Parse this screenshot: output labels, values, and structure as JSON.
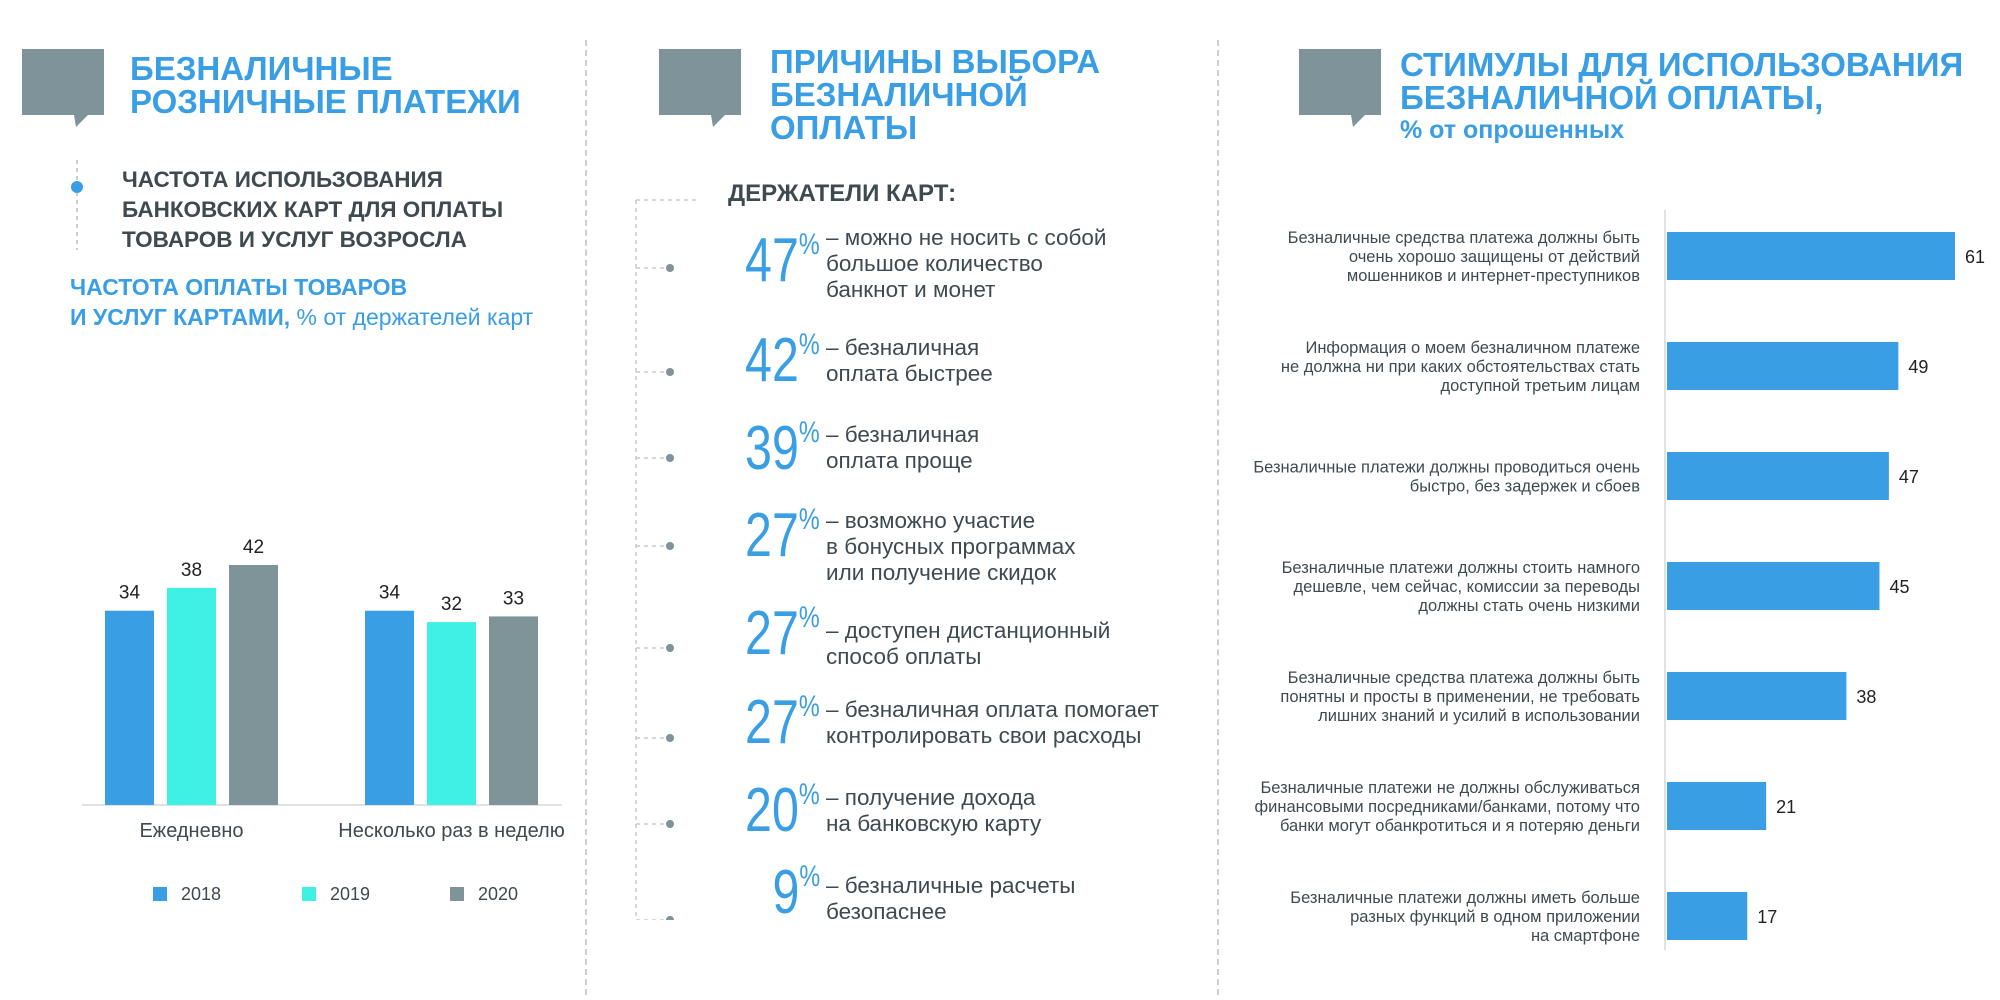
{
  "left": {
    "heading": [
      "БЕЗНАЛИЧНЫЕ",
      "РОЗНИЧНЫЕ ПЛАТЕЖИ"
    ],
    "bullet": [
      "ЧАСТОТА ИСПОЛЬЗОВАНИЯ",
      "БАНКОВСКИХ КАРТ ДЛЯ ОПЛАТЫ",
      "ТОВАРОВ И УСЛУГ ВОЗРОСЛА"
    ],
    "chart_title_line1": "ЧАСТОТА ОПЛАТЫ ТОВАРОВ",
    "chart_title_line2_bold": "И УСЛУГ КАРТАМИ,",
    "chart_title_line2_rest": " % от держателей карт"
  },
  "middle": {
    "heading": [
      "ПРИЧИНЫ ВЫБОРА",
      "БЕЗНАЛИЧНОЙ",
      "ОПЛАТЫ"
    ],
    "subtitle": "ДЕРЖАТЕЛИ КАРТ:",
    "percent_sign": "%",
    "reasons": [
      {
        "value": "47",
        "text": [
          "– можно не носить с собой",
          "большое количество",
          "банкнот и монет"
        ]
      },
      {
        "value": "42",
        "text": [
          "– безналичная",
          "оплата быстрее"
        ]
      },
      {
        "value": "39",
        "text": [
          "– безналичная",
          "оплата проще"
        ]
      },
      {
        "value": "27",
        "text": [
          "– возможно участие",
          "в бонусных программах",
          "или получение скидок"
        ]
      },
      {
        "value": "27",
        "text": [
          "– доступен дистанционный",
          "способ оплаты"
        ]
      },
      {
        "value": "27",
        "text": [
          "– безналичная оплата помогает",
          "контролировать свои расходы"
        ]
      },
      {
        "value": "20",
        "text": [
          "– получение дохода",
          "на банковскую карту"
        ]
      },
      {
        "value": "9",
        "text": [
          "– безналичные расчеты",
          "безопаснее"
        ]
      }
    ]
  },
  "right": {
    "heading": [
      "СТИМУЛЫ ДЛЯ ИСПОЛЬЗОВАНИЯ",
      "БЕЗНАЛИЧНОЙ ОПЛАТЫ,"
    ],
    "heading_sub": "% от опрошенных"
  },
  "colors": {
    "blue": "#3a9ee4",
    "cyan": "#3ff0e4",
    "gray": "#7f9498",
    "bubble": "#7e939a",
    "dark_text": "#3e4a50"
  },
  "chart_data": [
    {
      "type": "bar",
      "title": "ЧАСТОТА ОПЛАТЫ ТОВАРОВ И УСЛУГ КАРТАМИ, % от держателей карт",
      "categories": [
        "Ежедневно",
        "Несколько раз в неделю"
      ],
      "series": [
        {
          "name": "2018",
          "values": [
            34,
            34
          ]
        },
        {
          "name": "2019",
          "values": [
            38,
            32
          ]
        },
        {
          "name": "2020",
          "values": [
            42,
            33
          ]
        }
      ],
      "ylim": [
        0,
        45
      ],
      "legend": "bottom",
      "grid": false
    },
    {
      "type": "bar",
      "orientation": "horizontal",
      "title": "СТИМУЛЫ ДЛЯ ИСПОЛЬЗОВАНИЯ БЕЗНАЛИЧНОЙ ОПЛАТЫ, % от опрошенных",
      "categories": [
        [
          "Безналичные средства платежа должны быть",
          "очень хорошо защищены от действий",
          "мошенников и интернет-преступников"
        ],
        [
          "Информация о моем безналичном платеже",
          "не должна ни при каких обстоятельствах стать",
          "доступной третьим лицам"
        ],
        [
          "Безналичные платежи должны проводиться очень",
          "быстро, без задержек и сбоев"
        ],
        [
          "Безналичные платежи должны стоить намного",
          "дешевле, чем сейчас, комиссии за переводы",
          "должны стать очень низкими"
        ],
        [
          "Безналичные средства платежа должны быть",
          "понятны и просты в применении, не требовать",
          "лишних знаний и усилий в использовании"
        ],
        [
          "Безналичные платежи не должны обслуживаться",
          "финансовыми посредниками/банками, потому что",
          "банки могут обанкротиться и я потеряю деньги"
        ],
        [
          "Безналичные платежи должны иметь больше",
          "разных функций в одном приложении",
          "на смартфоне"
        ]
      ],
      "values": [
        61,
        49,
        47,
        45,
        38,
        21,
        17
      ],
      "xlim": [
        0,
        61
      ],
      "grid": false
    }
  ]
}
